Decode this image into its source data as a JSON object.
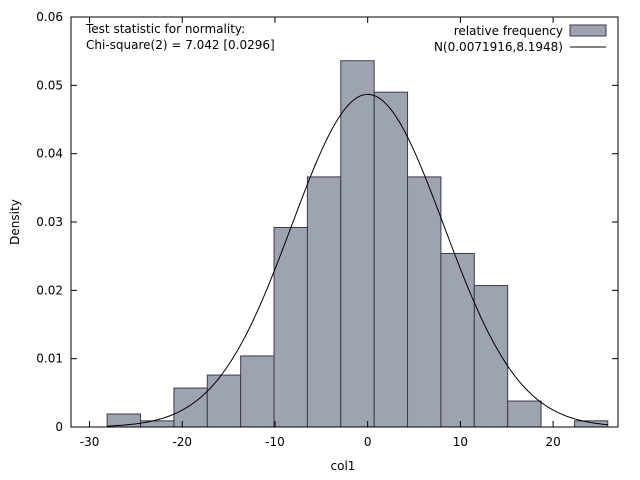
{
  "chart_data": {
    "type": "bar",
    "subtype": "histogram",
    "xlabel": "col1",
    "ylabel": "Density",
    "xlim": [
      -32,
      27
    ],
    "ylim": [
      0,
      0.06
    ],
    "xticks": [
      -30,
      -20,
      -10,
      0,
      10,
      20
    ],
    "yticks": [
      0,
      0.01,
      0.02,
      0.03,
      0.04,
      0.05,
      0.06
    ],
    "xtick_labels": [
      "-30",
      "-20",
      "-10",
      "0",
      "10",
      "20"
    ],
    "ytick_labels": [
      "0",
      "0.01",
      "0.02",
      "0.03",
      "0.04",
      "0.05",
      "0.06"
    ],
    "bin_width": 3.6,
    "bins": [
      {
        "x0": -28.1,
        "x1": -24.5,
        "density": 0.0019
      },
      {
        "x0": -24.5,
        "x1": -20.9,
        "density": 0.0009
      },
      {
        "x0": -20.9,
        "x1": -17.3,
        "density": 0.0057
      },
      {
        "x0": -17.3,
        "x1": -13.7,
        "density": 0.0076
      },
      {
        "x0": -13.7,
        "x1": -10.1,
        "density": 0.0104
      },
      {
        "x0": -10.1,
        "x1": -6.5,
        "density": 0.0292
      },
      {
        "x0": -6.5,
        "x1": -2.9,
        "density": 0.0366
      },
      {
        "x0": -2.9,
        "x1": 0.7,
        "density": 0.0536
      },
      {
        "x0": 0.7,
        "x1": 4.3,
        "density": 0.049
      },
      {
        "x0": 4.3,
        "x1": 7.9,
        "density": 0.0366
      },
      {
        "x0": 7.9,
        "x1": 11.5,
        "density": 0.0254
      },
      {
        "x0": 11.5,
        "x1": 15.1,
        "density": 0.0207
      },
      {
        "x0": 15.1,
        "x1": 18.7,
        "density": 0.0038
      },
      {
        "x0": 18.7,
        "x1": 22.3,
        "density": 0.0
      },
      {
        "x0": 22.3,
        "x1": 25.9,
        "density": 0.0009
      }
    ],
    "normal_curve": {
      "mean": 0.0071916,
      "sd": 8.1948,
      "x_range": [
        -28.1,
        25.9
      ]
    },
    "series": [
      {
        "name": "relative frequency",
        "kind": "bars",
        "color": "#9ea3b2"
      },
      {
        "name": "N(0.0071916,8.1948)",
        "kind": "line",
        "color": "#000000"
      }
    ],
    "legend_position": "top-right",
    "annotation": {
      "line1": "Test statistic for normality:",
      "line2": "Chi-square(2) = 7.042 [0.0296]"
    }
  },
  "colors": {
    "bar_fill": "#9ea3b2",
    "bar_stroke": "#3a3a4a",
    "curve": "#000000",
    "axis": "#000000"
  }
}
